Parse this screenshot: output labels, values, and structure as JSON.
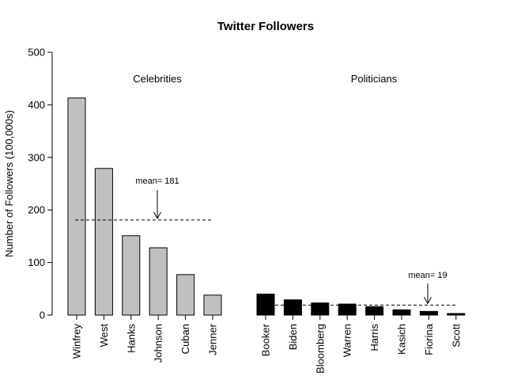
{
  "chart_data": {
    "type": "bar",
    "title": "Twitter Followers",
    "xlabel": "",
    "ylabel": "Number of Followers (100,000s)",
    "ylim": [
      0,
      500
    ],
    "yticks": [
      "0",
      "100",
      "200",
      "300",
      "400",
      "500"
    ],
    "grid": false,
    "groups": [
      {
        "name": "Celebrities",
        "color": "#c0c0c0",
        "categories": [
          "Winfrey",
          "West",
          "Hanks",
          "Johnson",
          "Cuban",
          "Jenner"
        ],
        "values": [
          413,
          279,
          151,
          128,
          77,
          38
        ],
        "mean": 181,
        "mean_label": "mean= 181"
      },
      {
        "name": "Politicians",
        "color": "#000000",
        "categories": [
          "Booker",
          "Biden",
          "Bloomberg",
          "Warren",
          "Harris",
          "Kasich",
          "Fiorina",
          "Scott"
        ],
        "values": [
          40,
          29,
          23,
          21,
          16,
          10,
          7,
          3
        ],
        "mean": 19,
        "mean_label": "mean= 19"
      }
    ]
  }
}
